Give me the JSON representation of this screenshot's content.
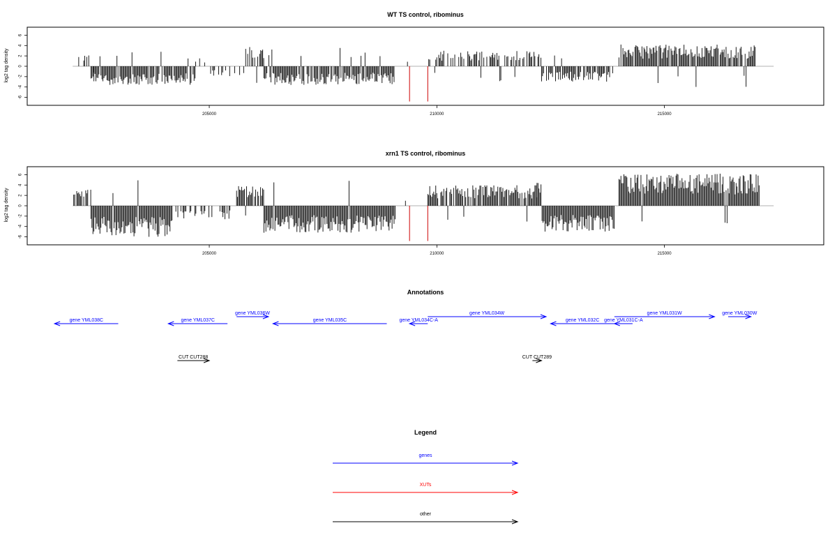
{
  "chart_data": [
    {
      "type": "bar",
      "title": "WT TS control, ribominus",
      "ylabel": "log2 tag density",
      "xlim": [
        201000,
        218500
      ],
      "ylim": [
        -7,
        7
      ],
      "x_ticks": [
        205000,
        210000,
        215000
      ],
      "x_tick_labels": [
        "205000",
        "210000",
        "215000"
      ],
      "y_ticks": [
        -6,
        -4,
        -2,
        0,
        2,
        4,
        6
      ],
      "y_tick_labels": [
        "-6",
        "-4",
        "-2",
        "0",
        "2",
        "4",
        "6"
      ],
      "segments": [
        {
          "from": 202000,
          "to": 202500,
          "amp": 2.2,
          "density": 0.3
        },
        {
          "from": 202400,
          "to": 204700,
          "amp": 3.6,
          "density": 0.9
        },
        {
          "from": 204700,
          "to": 205800,
          "amp": 2.0,
          "density": 0.25
        },
        {
          "from": 205800,
          "to": 206200,
          "amp": 3.8,
          "density": 0.7
        },
        {
          "from": 206200,
          "to": 209100,
          "amp": 3.6,
          "density": 0.9
        },
        {
          "from": 209200,
          "to": 209400,
          "amp": 1.0,
          "density": 0.1
        },
        {
          "from": 209800,
          "to": 212300,
          "amp": 3.0,
          "density": 0.6
        },
        {
          "from": 212300,
          "to": 213900,
          "amp": 3.0,
          "density": 0.8
        },
        {
          "from": 214000,
          "to": 217000,
          "amp": 4.2,
          "density": 0.95
        }
      ],
      "red_marks": [
        {
          "x": 209400,
          "y": -6.8
        },
        {
          "x": 209800,
          "y": -6.8
        }
      ]
    },
    {
      "type": "bar",
      "title": "xrn1 TS control, ribominus",
      "ylabel": "log2 tag density",
      "xlim": [
        201000,
        218500
      ],
      "ylim": [
        -7,
        7
      ],
      "x_ticks": [
        205000,
        210000,
        215000
      ],
      "x_tick_labels": [
        "205000",
        "210000",
        "215000"
      ],
      "y_ticks": [
        -6,
        -4,
        -2,
        0,
        2,
        4,
        6
      ],
      "y_tick_labels": [
        "-6",
        "-4",
        "-2",
        "0",
        "2",
        "4",
        "6"
      ],
      "segments": [
        {
          "from": 202000,
          "to": 202400,
          "amp": 3.2,
          "density": 0.5
        },
        {
          "from": 202400,
          "to": 204200,
          "amp": 6.0,
          "density": 1.0
        },
        {
          "from": 204200,
          "to": 205600,
          "amp": 2.6,
          "density": 0.4
        },
        {
          "from": 205600,
          "to": 206200,
          "amp": 3.8,
          "density": 0.8
        },
        {
          "from": 206200,
          "to": 209100,
          "amp": 5.2,
          "density": 1.0
        },
        {
          "from": 209200,
          "to": 209400,
          "amp": 1.0,
          "density": 0.1
        },
        {
          "from": 209800,
          "to": 212200,
          "amp": 4.0,
          "density": 0.9
        },
        {
          "from": 212200,
          "to": 213900,
          "amp": 5.0,
          "density": 1.0
        },
        {
          "from": 214000,
          "to": 217100,
          "amp": 6.2,
          "density": 1.0
        }
      ],
      "red_marks": [
        {
          "x": 209400,
          "y": -6.8
        },
        {
          "x": 209800,
          "y": -6.8
        }
      ]
    }
  ],
  "annotations": {
    "title": "Annotations",
    "genes": [
      {
        "label": "gene YML038C",
        "from": 203000,
        "to": 201600,
        "row": 2
      },
      {
        "label": "gene YML037C",
        "from": 205400,
        "to": 204100,
        "row": 2
      },
      {
        "label": "gene YML036W",
        "from": 205600,
        "to": 206300,
        "row": 1
      },
      {
        "label": "gene YML035C",
        "from": 208900,
        "to": 206400,
        "row": 2
      },
      {
        "label": "gene YML034C-A",
        "from": 209800,
        "to": 209400,
        "row": 2
      },
      {
        "label": "gene YML034W",
        "from": 209800,
        "to": 212400,
        "row": 1
      },
      {
        "label": "gene YML032C",
        "from": 213900,
        "to": 212500,
        "row": 2
      },
      {
        "label": "gene YML031C-A",
        "from": 214300,
        "to": 213900,
        "row": 2
      },
      {
        "label": "gene YML031W",
        "from": 213900,
        "to": 216100,
        "row": 1
      },
      {
        "label": "gene YML030W",
        "from": 216400,
        "to": 216900,
        "row": 1
      }
    ],
    "cuts": [
      {
        "label": "CUT CUT288",
        "from": 204300,
        "to": 205000
      },
      {
        "label": "CUT CUT289",
        "from": 212100,
        "to": 212300
      }
    ]
  },
  "legend": {
    "title": "Legend",
    "items": [
      {
        "label": "genes",
        "color": "#0000ff"
      },
      {
        "label": "XUTs",
        "color": "#ff0000"
      },
      {
        "label": "other",
        "color": "#000000"
      }
    ]
  },
  "colors": {
    "gene": "#0000ff",
    "xut": "#ff0000",
    "other": "#000000",
    "bar": "#000000",
    "red_bar": "#cc0000"
  }
}
